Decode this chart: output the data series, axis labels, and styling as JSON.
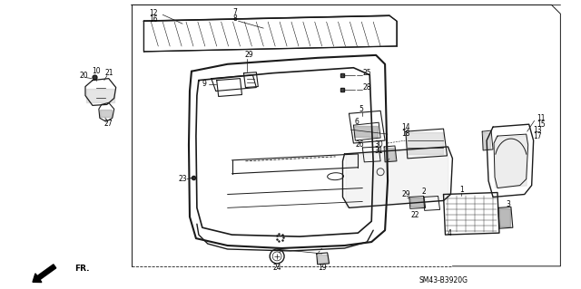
{
  "bg_color": "#ffffff",
  "diagram_code": "SM43-B3920G",
  "line_color": "#1a1a1a",
  "lw": 0.8
}
